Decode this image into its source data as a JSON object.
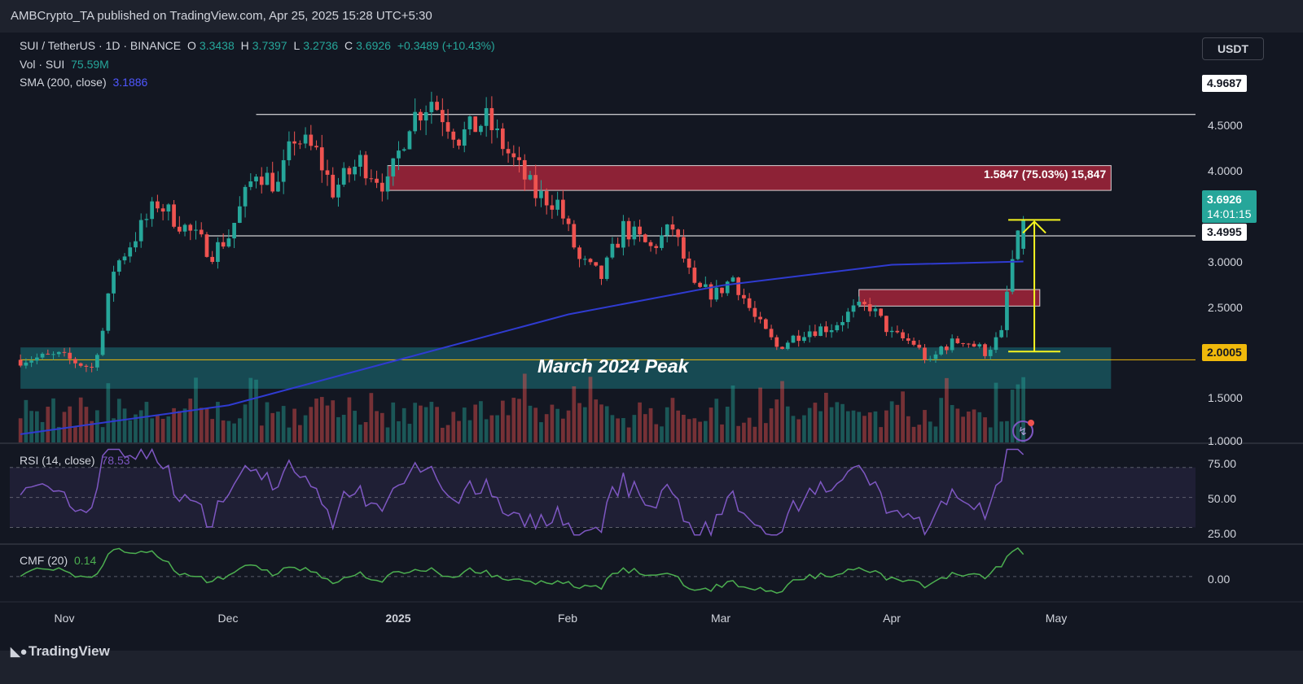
{
  "header": {
    "published": "AMBCrypto_TA published on TradingView.com, Apr 25, 2025 15:28 UTC+5:30"
  },
  "legend": {
    "symbol": "SUI / TetherUS · 1D · BINANCE",
    "open_label": "O",
    "open": "3.3438",
    "high_label": "H",
    "high": "3.7397",
    "low_label": "L",
    "low": "3.2736",
    "close_label": "C",
    "close": "3.6926",
    "change": "+0.3489 (+10.43%)",
    "vol_label": "Vol · SUI",
    "vol": "75.59M",
    "sma_label": "SMA (200, close)",
    "sma": "3.1886",
    "rsi_label": "RSI (14, close)",
    "rsi": "78.53",
    "cmf_label": "CMF (20)",
    "cmf": "0.14"
  },
  "currency_button": "USDT",
  "price_axis": {
    "ticks": [
      "4.5000",
      "4.0000",
      "3.0000",
      "2.5000",
      "1.5000",
      "1.0000"
    ],
    "rsi_ticks": [
      "75.00",
      "50.00",
      "25.00"
    ],
    "cmf_ticks": [
      "0.00"
    ]
  },
  "price_tags": {
    "level_high": "4.9687",
    "current_price": "3.6926",
    "countdown": "14:01:15",
    "level_mid": "3.4995",
    "level_low": "2.0005"
  },
  "x_axis": [
    "Nov",
    "Dec",
    "2025",
    "Feb",
    "Mar",
    "Apr",
    "May"
  ],
  "annotations": {
    "measure": "1.5847 (75.03%) 15,847",
    "zone_label": "March 2024 Peak"
  },
  "footer": {
    "brand": "TradingView"
  },
  "colors": {
    "up": "#26a69a",
    "down": "#ef5350",
    "sma": "#2f3bd1",
    "rsi": "#7e57c2",
    "cmf": "#4caf50",
    "supply_zone": "#c2283f",
    "demand_zone": "#1a5c64",
    "measure": "#f5f520",
    "level_line": "#ffffff",
    "peak_line": "#f0b90b"
  },
  "chart_data": {
    "type": "candlestick",
    "symbol": "SUI/USDT",
    "timeframe": "1D",
    "x_range": [
      "2024-10-24",
      "2025-05-17"
    ],
    "y_range": [
      1.0,
      5.35
    ],
    "last_candle": {
      "date": "2025-04-25",
      "open": 3.3438,
      "high": 3.7397,
      "low": 3.2736,
      "close": 3.6926
    },
    "anchors": [
      {
        "date": "2024-10-24",
        "close": 2.0
      },
      {
        "date": "2024-10-31",
        "close": 2.05
      },
      {
        "date": "2024-11-06",
        "close": 1.9
      },
      {
        "date": "2024-11-08",
        "close": 2.35
      },
      {
        "date": "2024-11-10",
        "close": 3.1
      },
      {
        "date": "2024-11-13",
        "close": 3.4
      },
      {
        "date": "2024-11-18",
        "close": 3.9
      },
      {
        "date": "2024-11-23",
        "close": 3.6
      },
      {
        "date": "2024-11-28",
        "close": 3.3
      },
      {
        "date": "2024-12-01",
        "close": 3.5
      },
      {
        "date": "2024-12-06",
        "close": 4.3
      },
      {
        "date": "2024-12-10",
        "close": 4.1
      },
      {
        "date": "2024-12-13",
        "close": 4.7
      },
      {
        "date": "2024-12-17",
        "close": 4.5
      },
      {
        "date": "2024-12-20",
        "close": 4.05
      },
      {
        "date": "2024-12-25",
        "close": 4.4
      },
      {
        "date": "2024-12-30",
        "close": 4.1
      },
      {
        "date": "2025-01-03",
        "close": 4.9
      },
      {
        "date": "2025-01-07",
        "close": 5.15
      },
      {
        "date": "2025-01-12",
        "close": 4.7
      },
      {
        "date": "2025-01-17",
        "close": 4.9
      },
      {
        "date": "2025-01-22",
        "close": 4.4
      },
      {
        "date": "2025-01-26",
        "close": 4.0
      },
      {
        "date": "2025-01-30",
        "close": 3.9
      },
      {
        "date": "2025-02-03",
        "close": 3.2
      },
      {
        "date": "2025-02-07",
        "close": 3.0
      },
      {
        "date": "2025-02-11",
        "close": 3.6
      },
      {
        "date": "2025-02-16",
        "close": 3.35
      },
      {
        "date": "2025-02-20",
        "close": 3.6
      },
      {
        "date": "2025-02-24",
        "close": 2.85
      },
      {
        "date": "2025-02-28",
        "close": 2.8
      },
      {
        "date": "2025-03-03",
        "close": 3.0
      },
      {
        "date": "2025-03-07",
        "close": 2.5
      },
      {
        "date": "2025-03-11",
        "close": 2.15
      },
      {
        "date": "2025-03-16",
        "close": 2.35
      },
      {
        "date": "2025-03-21",
        "close": 2.4
      },
      {
        "date": "2025-03-25",
        "close": 2.6
      },
      {
        "date": "2025-03-28",
        "close": 2.65
      },
      {
        "date": "2025-04-01",
        "close": 2.3
      },
      {
        "date": "2025-04-05",
        "close": 2.2
      },
      {
        "date": "2025-04-08",
        "close": 1.95
      },
      {
        "date": "2025-04-10",
        "close": 2.15
      },
      {
        "date": "2025-04-14",
        "close": 2.25
      },
      {
        "date": "2025-04-18",
        "close": 2.1
      },
      {
        "date": "2025-04-21",
        "close": 2.3
      },
      {
        "date": "2025-04-22",
        "close": 2.8
      },
      {
        "date": "2025-04-23",
        "close": 3.2
      },
      {
        "date": "2025-04-25",
        "close": 3.69
      }
    ],
    "sma_200": [
      {
        "date": "2024-10-24",
        "value": 1.1
      },
      {
        "date": "2024-12-01",
        "value": 1.45
      },
      {
        "date": "2025-01-01",
        "value": 2.0
      },
      {
        "date": "2025-02-01",
        "value": 2.55
      },
      {
        "date": "2025-03-01",
        "value": 2.9
      },
      {
        "date": "2025-04-01",
        "value": 3.15
      },
      {
        "date": "2025-04-25",
        "value": 3.19
      }
    ],
    "levels": [
      {
        "name": "level-high",
        "value": 4.9687,
        "from": "2024-12-06"
      },
      {
        "name": "level-mid",
        "value": 3.4995,
        "from": "2024-11-27"
      },
      {
        "name": "level-march-2024-peak",
        "value": 2.0005,
        "from": "2024-10-24"
      }
    ],
    "zones": [
      {
        "name": "supply-zone-upper",
        "from": "2024-12-30",
        "to": "2025-05-11",
        "low": 4.05,
        "high": 4.35
      },
      {
        "name": "supply-zone-lower",
        "from": "2025-03-26",
        "to": "2025-04-28",
        "low": 2.65,
        "high": 2.85
      },
      {
        "name": "march-2024-peak-zone",
        "from": "2024-10-24",
        "to": "2025-05-11",
        "low": 1.65,
        "high": 2.15
      }
    ],
    "measure": {
      "from": 2.1,
      "to": 3.6926,
      "date": "2025-04-27",
      "change": 1.5847,
      "percent": 75.03
    },
    "rsi_range": [
      20,
      85
    ],
    "rsi_last": 78.53,
    "rsi_levels": [
      70,
      50,
      30
    ],
    "cmf_range": [
      -0.15,
      0.2
    ],
    "cmf_last": 0.14
  }
}
